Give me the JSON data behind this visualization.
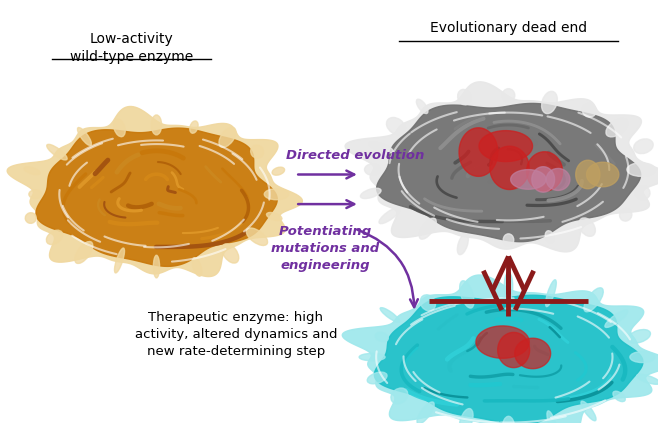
{
  "background_color": "#ffffff",
  "label_wt": "Low-activity\nwild-type enzyme",
  "label_dead": "Evolutionary dead end",
  "label_therapeutic": "Therapeutic enzyme: high\nactivity, altered dynamics and\nnew rate-determining step",
  "label_directed": "Directed evolution",
  "label_potentiating": "Potentiating\nmutations and\nengineering",
  "arrow_color": "#7030A0",
  "block_color": "#8B1A1A",
  "fig_width": 6.61,
  "fig_height": 4.27,
  "dpi": 100,
  "orange_main": "#C8780A",
  "orange_light": "#E8A030",
  "orange_dark": "#A05808",
  "orange_cream": "#F0D090",
  "gray_main": "#707070",
  "gray_light": "#A0A0A0",
  "gray_dark": "#404040",
  "gray_white": "#E0E0E0",
  "cyan_main": "#20C0C8",
  "cyan_light": "#50D8E0",
  "cyan_dark": "#10A0A8",
  "red_accent": "#CC2020",
  "mauve_accent": "#C080A0",
  "tan_accent": "#C0A060"
}
